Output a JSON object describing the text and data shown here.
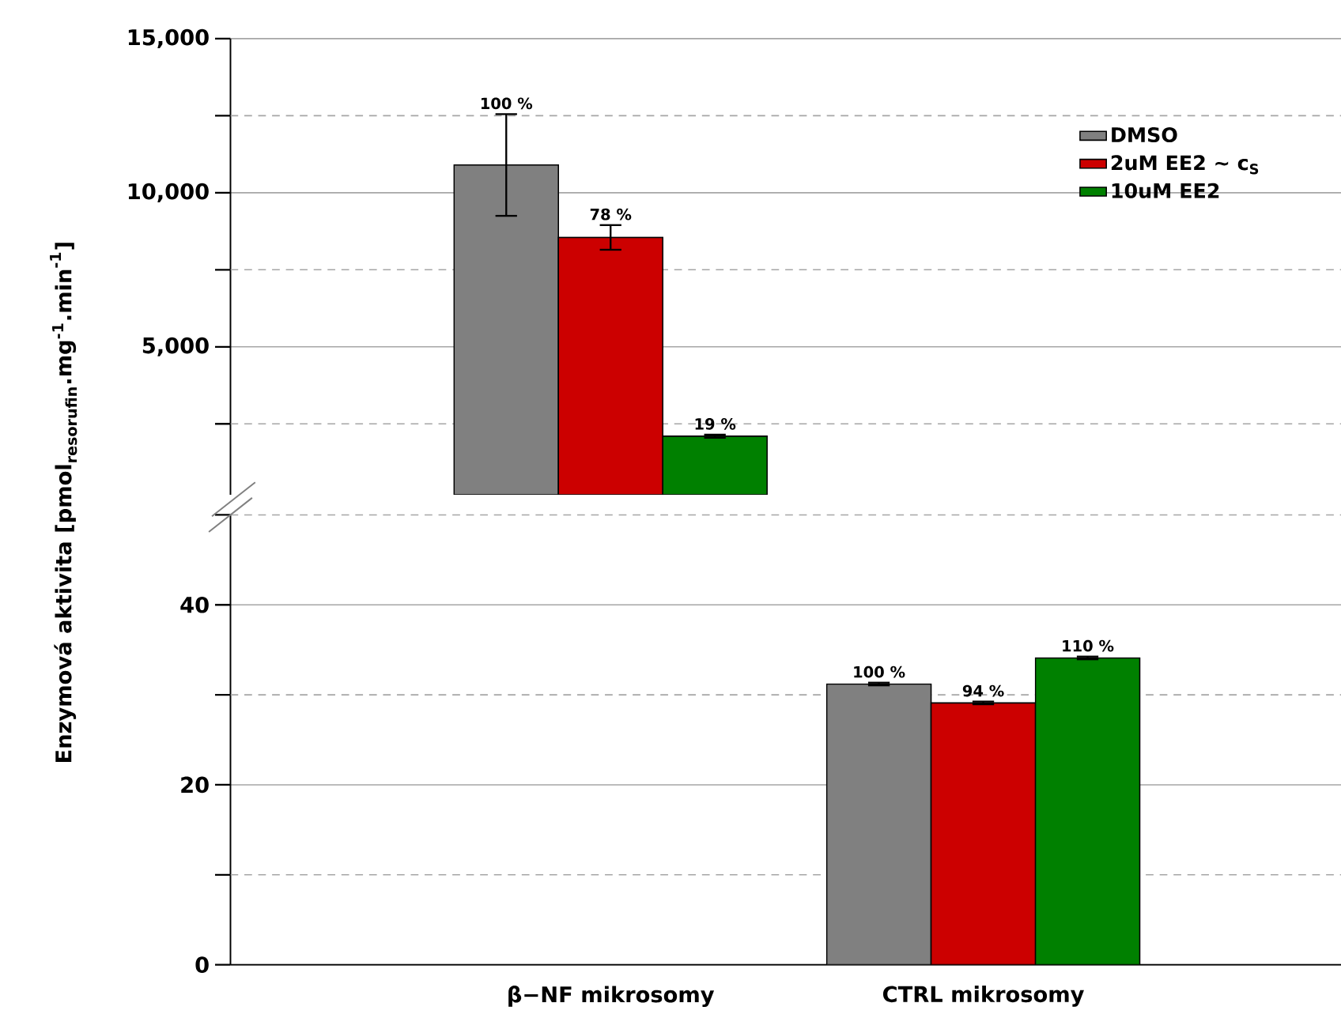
{
  "chart_data": [
    {
      "type": "bar",
      "ylabel": "\\text{Enzymová aktivita [pmol}_{\\text{resorufin}}\\text{.mg}^{\\text{-1}}\\text{.min}^{\\text{-1}}\\text{]}",
      "categories": [
        null,
        null
      ],
      "series": [
        {
          "name": "DMSO",
          "color": "#808080",
          "values": [
            10900,
            null
          ],
          "errors": [
            [
              9250,
              12550
            ],
            null
          ]
        },
        {
          "name": "2uM EE2 ~ c$_{S}$",
          "color": "#cc0000",
          "values": [
            8550,
            null
          ],
          "errors": [
            [
              8150,
              8950
            ],
            null
          ]
        },
        {
          "name": "10uM EE2",
          "color": "#008000",
          "values": [
            2100,
            null
          ],
          "errors": [
            [
              2050,
              2150
            ],
            null
          ]
        }
      ],
      "annotations": [
        {
          "text": "100 %",
          "y": 12550
        },
        {
          "text": "78 %",
          "y": 8950
        },
        {
          "text": "19 %",
          "y": 2150
        }
      ],
      "ylim": [
        200,
        15000
      ],
      "yticks": [
        {
          "value": 2500,
          "label": null
        },
        {
          "value": 5000,
          "label": "5,000"
        },
        {
          "value": 7500,
          "label": null
        },
        {
          "value": 10000,
          "label": "10,000"
        },
        {
          "value": 12500,
          "label": null
        },
        {
          "value": 15000,
          "label": "15,000"
        }
      ],
      "grid": "y",
      "legend": "top right",
      "tick_labels": "y"
    },
    {
      "type": "bar",
      "categories": [
        "β−NF mikrosomy",
        "CTRL mikrosomy"
      ],
      "series": [
        {
          "color": "#808080",
          "values": [
            null,
            31.2
          ],
          "errors": [
            null,
            [
              31.05,
              31.35
            ]
          ]
        },
        {
          "color": "#cc0000",
          "values": [
            null,
            29.1
          ],
          "errors": [
            null,
            [
              28.95,
              29.25
            ]
          ]
        },
        {
          "color": "#008000",
          "values": [
            null,
            34.1
          ],
          "errors": [
            null,
            [
              33.95,
              34.25
            ]
          ]
        }
      ],
      "annotations": [
        {
          "text": "100 %",
          "y": 31.35
        },
        {
          "text": "94 %",
          "y": 29.25
        },
        {
          "text": "110 %",
          "y": 34.25
        }
      ],
      "ylim": [
        0,
        50
      ],
      "yticks": [
        0,
        {
          "value": 10,
          "label": null
        },
        20,
        {
          "value": 30,
          "label": null
        },
        40,
        {
          "value": 50,
          "label": null
        }
      ],
      "grid": "y"
    }
  ]
}
